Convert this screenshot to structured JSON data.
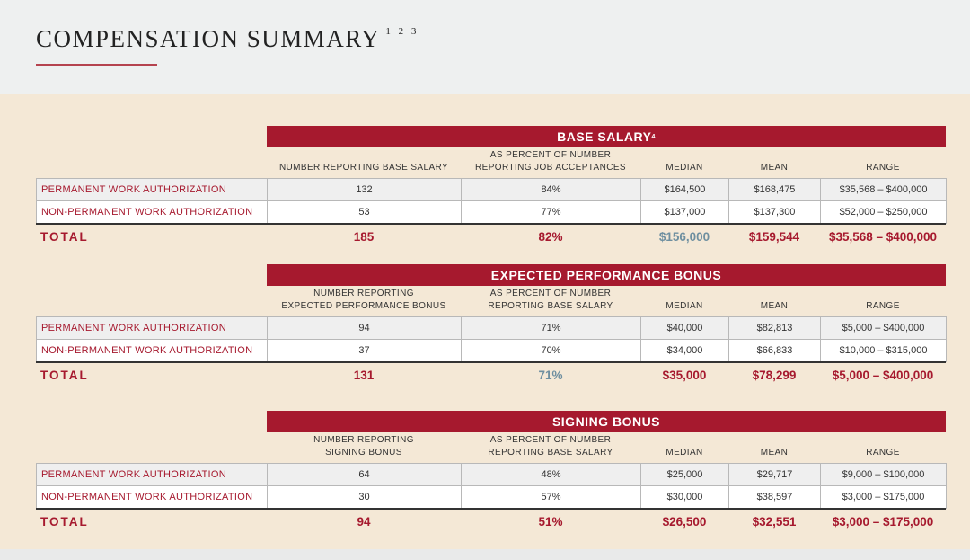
{
  "header": {
    "title": "COMPENSATION SUMMARY",
    "footnotes": "1 2 3"
  },
  "tables": [
    {
      "title": "BASE SALARY",
      "footnote": "4",
      "columns": [
        [
          "NUMBER REPORTING BASE SALARY"
        ],
        [
          "AS PERCENT OF NUMBER",
          "REPORTING JOB ACCEPTANCES"
        ],
        [
          "MEDIAN"
        ],
        [
          "MEAN"
        ],
        [
          "RANGE"
        ]
      ],
      "rows": [
        [
          "PERMANENT WORK AUTHORIZATION",
          "132",
          "84%",
          "$164,500",
          "$168,475",
          "$35,568 – $400,000"
        ],
        [
          "NON-PERMANENT WORK AUTHORIZATION",
          "53",
          "77%",
          "$137,000",
          "$137,300",
          "$52,000 – $250,000"
        ]
      ],
      "total": [
        "TOTAL",
        "185",
        "82%",
        "$156,000",
        "$159,544",
        "$35,568 – $400,000"
      ]
    },
    {
      "title": "EXPECTED PERFORMANCE BONUS",
      "columns": [
        [
          "NUMBER REPORTING",
          "EXPECTED PERFORMANCE BONUS"
        ],
        [
          "AS PERCENT OF NUMBER",
          "REPORTING BASE SALARY"
        ],
        [
          "MEDIAN"
        ],
        [
          "MEAN"
        ],
        [
          "RANGE"
        ]
      ],
      "rows": [
        [
          "PERMANENT WORK AUTHORIZATION",
          "94",
          "71%",
          "$40,000",
          "$82,813",
          "$5,000 – $400,000"
        ],
        [
          "NON-PERMANENT WORK AUTHORIZATION",
          "37",
          "70%",
          "$34,000",
          "$66,833",
          "$10,000 – $315,000"
        ]
      ],
      "total": [
        "TOTAL",
        "131",
        "71%",
        "$35,000",
        "$78,299",
        "$5,000 – $400,000"
      ]
    },
    {
      "title": "SIGNING BONUS",
      "columns": [
        [
          "NUMBER REPORTING",
          "SIGNING BONUS"
        ],
        [
          "AS PERCENT OF NUMBER",
          "REPORTING BASE SALARY"
        ],
        [
          "MEDIAN"
        ],
        [
          "MEAN"
        ],
        [
          "RANGE"
        ]
      ],
      "rows": [
        [
          "PERMANENT WORK AUTHORIZATION",
          "64",
          "48%",
          "$25,000",
          "$29,717",
          "$9,000 – $100,000"
        ],
        [
          "NON-PERMANENT WORK AUTHORIZATION",
          "30",
          "57%",
          "$30,000",
          "$38,597",
          "$3,000 – $175,000"
        ]
      ],
      "total": [
        "TOTAL",
        "94",
        "51%",
        "$26,500",
        "$32,551",
        "$3,000 – $175,000"
      ]
    }
  ]
}
